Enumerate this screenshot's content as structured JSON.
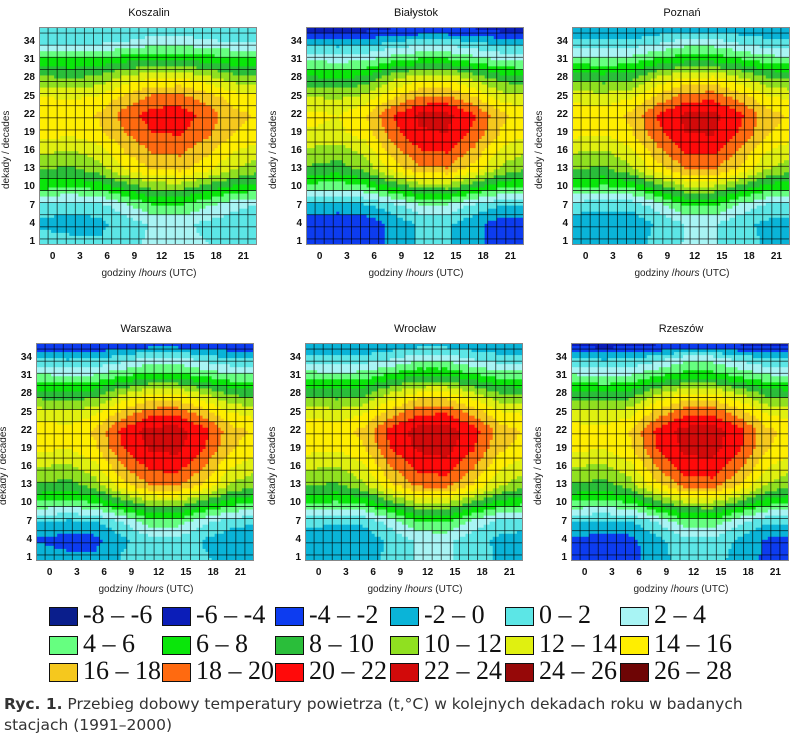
{
  "chart_data": {
    "type": "heatmap",
    "subtype": "filled-contour",
    "title": "Ryc. 1. Przebieg dobowy temperatury powietrza (t,°C) w kolejnych dekadach roku w badanych stacjach (1991–2000)",
    "xlabel_prefix": "godziny /",
    "xlabel_italic": "hours",
    "xlabel_suffix": " (UTC)",
    "ylabel": "dekady / decades",
    "x_ticks": [
      "0",
      "3",
      "6",
      "9",
      "12",
      "15",
      "18",
      "21"
    ],
    "y_ticks": [
      "34",
      "31",
      "28",
      "25",
      "22",
      "19",
      "16",
      "13",
      "10",
      "7",
      "4",
      "1"
    ],
    "xlim": [
      -1.5,
      22.5
    ],
    "ylim": [
      0.5,
      36.5
    ],
    "grid_hours": [
      -1,
      2,
      5,
      8,
      11,
      14,
      17,
      20,
      23
    ],
    "grid_decades": [
      1,
      4,
      7,
      10,
      13,
      16,
      19,
      22,
      25,
      28,
      31,
      34,
      36
    ],
    "legend": [
      {
        "label": "-8 – -6",
        "min": -8,
        "max": -6,
        "color": "#0a1e8c"
      },
      {
        "label": "-6 – -4",
        "min": -6,
        "max": -4,
        "color": "#0b1db8"
      },
      {
        "label": "-4 – -2",
        "min": -4,
        "max": -2,
        "color": "#0d3cf0"
      },
      {
        "label": "-2 – 0",
        "min": -2,
        "max": 0,
        "color": "#0ab4d8"
      },
      {
        "label": "0 – 2",
        "min": 0,
        "max": 2,
        "color": "#5ce6e6"
      },
      {
        "label": "2 – 4",
        "min": 2,
        "max": 4,
        "color": "#a8f4f4"
      },
      {
        "label": "4 – 6",
        "min": 4,
        "max": 6,
        "color": "#66ff80"
      },
      {
        "label": "6 – 8",
        "min": 6,
        "max": 8,
        "color": "#0ae60a"
      },
      {
        "label": "8 – 10",
        "min": 8,
        "max": 10,
        "color": "#2abe3a"
      },
      {
        "label": "10 – 12",
        "min": 10,
        "max": 12,
        "color": "#90e020"
      },
      {
        "label": "12 – 14",
        "min": 12,
        "max": 14,
        "color": "#e0f010"
      },
      {
        "label": "14 – 16",
        "min": 14,
        "max": 16,
        "color": "#ffee00"
      },
      {
        "label": "16 – 18",
        "min": 16,
        "max": 18,
        "color": "#f5c81e"
      },
      {
        "label": "18 – 20",
        "min": 18,
        "max": 20,
        "color": "#ff6a10"
      },
      {
        "label": "20 – 22",
        "min": 20,
        "max": 22,
        "color": "#ff0a0a"
      },
      {
        "label": "22 – 24",
        "min": 22,
        "max": 24,
        "color": "#d20a0a"
      },
      {
        "label": "24 – 26",
        "min": 24,
        "max": 26,
        "color": "#960808"
      },
      {
        "label": "26 – 28",
        "min": 26,
        "max": 28,
        "color": "#6e0505"
      }
    ],
    "stations": [
      {
        "name": "Koszalin",
        "temperature_grid": [
          [
            1.0,
            0.5,
            0.2,
            1.2,
            2.5,
            2.8,
            2.0,
            1.5,
            1.2
          ],
          [
            -0.5,
            -0.8,
            -0.6,
            0.8,
            2.2,
            2.4,
            1.5,
            0.8,
            0.5
          ],
          [
            1.0,
            0.6,
            1.0,
            3.5,
            5.8,
            6.0,
            4.2,
            2.5,
            1.8
          ],
          [
            6.5,
            6.2,
            6.6,
            8.5,
            10.5,
            10.6,
            9.0,
            7.5,
            7.0
          ],
          [
            10.0,
            9.6,
            11.0,
            14.0,
            16.2,
            16.5,
            14.5,
            12.0,
            10.5
          ],
          [
            12.5,
            11.8,
            13.0,
            16.2,
            18.2,
            18.5,
            16.5,
            14.0,
            13.0
          ],
          [
            14.8,
            14.5,
            15.4,
            18.0,
            20.0,
            20.2,
            18.5,
            16.0,
            15.2
          ],
          [
            15.6,
            15.2,
            16.2,
            19.0,
            21.0,
            21.2,
            19.2,
            16.5,
            15.8
          ],
          [
            14.0,
            13.6,
            14.2,
            16.5,
            18.4,
            18.6,
            17.0,
            15.0,
            14.3
          ],
          [
            10.5,
            10.0,
            10.6,
            12.8,
            14.0,
            14.2,
            12.8,
            11.0,
            10.6
          ],
          [
            6.5,
            6.5,
            6.6,
            7.5,
            8.0,
            8.0,
            7.4,
            6.8,
            6.6
          ],
          [
            1.5,
            1.5,
            1.5,
            2.0,
            3.0,
            3.0,
            2.5,
            1.8,
            1.6
          ],
          [
            0.2,
            0.0,
            0.0,
            0.5,
            1.0,
            1.0,
            0.6,
            0.3,
            0.3
          ]
        ]
      },
      {
        "name": "Białystok",
        "temperature_grid": [
          [
            -3.5,
            -3.8,
            -3.5,
            -1.5,
            0.2,
            0.3,
            -1.5,
            -3.0,
            -3.3
          ],
          [
            -3.2,
            -3.6,
            -3.4,
            -1.5,
            0.3,
            0.4,
            -1.4,
            -3.0,
            -3.2
          ],
          [
            -0.5,
            -0.9,
            -0.5,
            1.2,
            3.5,
            3.5,
            1.6,
            0.0,
            -0.4
          ],
          [
            5.0,
            4.5,
            5.5,
            8.0,
            10.5,
            10.6,
            8.2,
            6.2,
            5.5
          ],
          [
            9.5,
            9.0,
            10.5,
            14.5,
            17.5,
            17.8,
            15.0,
            11.5,
            10.0
          ],
          [
            11.5,
            11.0,
            12.5,
            17.0,
            19.8,
            20.2,
            17.5,
            13.5,
            12.0
          ],
          [
            13.8,
            13.5,
            15.0,
            19.0,
            21.8,
            22.0,
            19.5,
            15.8,
            14.2
          ],
          [
            14.5,
            14.0,
            15.8,
            20.0,
            22.4,
            22.6,
            20.2,
            16.5,
            15.0
          ],
          [
            12.0,
            11.6,
            12.5,
            15.5,
            18.2,
            18.4,
            16.0,
            13.0,
            12.3
          ],
          [
            8.5,
            8.0,
            8.6,
            11.5,
            13.5,
            13.6,
            11.5,
            9.2,
            8.6
          ],
          [
            3.8,
            3.5,
            3.8,
            5.5,
            6.5,
            6.5,
            5.2,
            4.0,
            3.8
          ],
          [
            -1.0,
            -1.2,
            -1.0,
            0.0,
            1.0,
            1.0,
            0.0,
            -0.8,
            -0.9
          ],
          [
            -4.5,
            -4.7,
            -4.5,
            -4.0,
            -3.8,
            -3.8,
            -4.0,
            -4.5,
            -4.5
          ]
        ]
      },
      {
        "name": "Poznań",
        "temperature_grid": [
          [
            -0.6,
            -0.8,
            -0.7,
            0.5,
            2.2,
            2.3,
            0.8,
            -0.3,
            -0.5
          ],
          [
            -1.0,
            -1.2,
            -1.3,
            0.3,
            2.0,
            2.2,
            0.5,
            -0.5,
            -0.8
          ],
          [
            0.8,
            0.4,
            0.5,
            3.0,
            6.0,
            6.2,
            3.5,
            1.5,
            1.0
          ],
          [
            6.0,
            5.6,
            6.0,
            9.0,
            11.5,
            11.6,
            9.2,
            7.0,
            6.3
          ],
          [
            10.0,
            9.6,
            11.5,
            15.0,
            18.0,
            18.3,
            15.5,
            12.0,
            10.5
          ],
          [
            12.2,
            11.8,
            13.5,
            17.5,
            20.2,
            20.5,
            17.8,
            14.0,
            12.6
          ],
          [
            14.6,
            14.2,
            15.8,
            19.5,
            22.0,
            22.2,
            19.8,
            16.2,
            15.0
          ],
          [
            15.3,
            15.0,
            16.5,
            20.2,
            22.5,
            22.7,
            20.5,
            16.8,
            15.6
          ],
          [
            13.2,
            12.8,
            13.6,
            16.5,
            19.0,
            19.2,
            17.0,
            14.2,
            13.4
          ],
          [
            9.5,
            9.0,
            9.6,
            12.5,
            14.5,
            14.6,
            12.5,
            10.2,
            9.6
          ],
          [
            5.0,
            4.8,
            5.0,
            6.8,
            7.5,
            7.5,
            6.5,
            5.2,
            5.0
          ],
          [
            0.5,
            0.3,
            0.5,
            1.5,
            3.0,
            3.0,
            1.5,
            0.6,
            0.5
          ],
          [
            -1.5,
            -1.7,
            -1.6,
            -1.0,
            -0.5,
            -0.5,
            -1.0,
            -1.4,
            -1.5
          ]
        ]
      },
      {
        "name": "Warszawa",
        "temperature_grid": [
          [
            -1.0,
            -1.5,
            -1.6,
            0.2,
            1.5,
            1.6,
            0.2,
            -0.6,
            -0.8
          ],
          [
            -2.2,
            -2.8,
            -2.6,
            -0.5,
            1.2,
            1.4,
            -0.2,
            -1.2,
            -1.6
          ],
          [
            0.0,
            -0.5,
            -0.2,
            2.0,
            5.0,
            5.2,
            2.4,
            0.8,
            0.2
          ],
          [
            5.5,
            5.0,
            5.8,
            8.5,
            11.0,
            11.2,
            8.8,
            6.6,
            5.8
          ],
          [
            9.8,
            9.2,
            11.0,
            15.0,
            18.0,
            18.4,
            15.5,
            11.8,
            10.2
          ],
          [
            12.0,
            11.5,
            13.2,
            17.8,
            20.4,
            20.8,
            18.0,
            14.0,
            12.4
          ],
          [
            14.4,
            14.0,
            15.6,
            19.8,
            22.2,
            22.5,
            20.0,
            16.2,
            14.8
          ],
          [
            15.2,
            14.8,
            16.4,
            20.6,
            22.8,
            23.0,
            20.8,
            16.8,
            15.5
          ],
          [
            13.0,
            12.5,
            13.4,
            16.6,
            19.2,
            19.4,
            17.0,
            14.0,
            13.2
          ],
          [
            9.0,
            8.6,
            9.2,
            12.2,
            14.2,
            14.4,
            12.2,
            9.8,
            9.2
          ],
          [
            4.5,
            4.2,
            4.4,
            6.0,
            7.0,
            7.0,
            5.8,
            4.6,
            4.4
          ],
          [
            0.0,
            -0.4,
            -0.2,
            0.8,
            2.4,
            2.4,
            1.0,
            0.0,
            -0.1
          ],
          [
            -3.6,
            -3.8,
            -3.6,
            -3.0,
            -2.6,
            -2.6,
            -3.0,
            -3.4,
            -3.5
          ]
        ]
      },
      {
        "name": "Wrocław",
        "temperature_grid": [
          [
            -0.5,
            -0.8,
            -0.8,
            0.5,
            2.2,
            2.4,
            0.9,
            -0.3,
            -0.5
          ],
          [
            -1.0,
            -1.3,
            -1.2,
            0.4,
            2.4,
            2.6,
            0.8,
            -0.5,
            -0.8
          ],
          [
            0.6,
            0.2,
            0.4,
            3.0,
            6.0,
            6.2,
            3.5,
            1.2,
            0.8
          ],
          [
            6.0,
            5.6,
            6.2,
            9.2,
            11.8,
            12.0,
            9.4,
            7.0,
            6.3
          ],
          [
            10.2,
            9.6,
            11.6,
            15.5,
            18.5,
            18.8,
            15.8,
            12.2,
            10.6
          ],
          [
            12.3,
            11.8,
            13.6,
            18.0,
            20.6,
            21.0,
            18.2,
            14.2,
            12.6
          ],
          [
            14.6,
            14.2,
            15.8,
            20.0,
            22.4,
            22.8,
            20.2,
            16.4,
            15.0
          ],
          [
            15.4,
            15.0,
            16.6,
            20.8,
            23.0,
            23.3,
            21.0,
            17.0,
            15.7
          ],
          [
            13.4,
            12.8,
            13.8,
            17.0,
            19.6,
            19.8,
            17.4,
            14.4,
            13.6
          ],
          [
            9.6,
            9.0,
            9.6,
            12.6,
            14.8,
            15.0,
            12.6,
            10.2,
            9.6
          ],
          [
            5.2,
            5.0,
            5.2,
            7.0,
            8.0,
            8.0,
            6.8,
            5.4,
            5.2
          ],
          [
            0.6,
            0.4,
            0.6,
            1.6,
            3.2,
            3.2,
            1.6,
            0.7,
            0.6
          ],
          [
            -1.5,
            -1.7,
            -1.6,
            -1.0,
            -0.4,
            -0.4,
            -1.0,
            -1.4,
            -1.5
          ]
        ]
      },
      {
        "name": "Rzeszów",
        "temperature_grid": [
          [
            -2.6,
            -3.0,
            -2.8,
            -0.8,
            0.8,
            1.0,
            -0.8,
            -2.4,
            -2.6
          ],
          [
            -2.4,
            -2.8,
            -2.6,
            -0.6,
            1.4,
            1.6,
            -0.4,
            -2.2,
            -2.4
          ],
          [
            0.0,
            -0.4,
            -0.2,
            2.2,
            5.2,
            5.4,
            2.6,
            0.4,
            0.2
          ],
          [
            5.5,
            5.0,
            5.8,
            9.0,
            11.5,
            11.6,
            9.2,
            6.6,
            5.8
          ],
          [
            9.8,
            9.2,
            11.0,
            15.4,
            18.6,
            19.0,
            16.0,
            12.0,
            10.2
          ],
          [
            12.0,
            11.4,
            13.2,
            18.2,
            21.0,
            21.4,
            18.6,
            14.2,
            12.4
          ],
          [
            14.4,
            14.0,
            15.6,
            20.0,
            22.4,
            22.8,
            20.4,
            16.2,
            14.8
          ],
          [
            15.0,
            14.6,
            16.2,
            20.6,
            22.8,
            23.2,
            20.8,
            16.6,
            15.3
          ],
          [
            12.8,
            12.4,
            13.2,
            16.8,
            19.4,
            19.6,
            17.0,
            13.8,
            13.0
          ],
          [
            9.0,
            8.6,
            9.0,
            12.2,
            14.4,
            14.6,
            12.2,
            9.6,
            9.0
          ],
          [
            4.4,
            4.0,
            4.2,
            6.0,
            7.2,
            7.2,
            5.8,
            4.4,
            4.2
          ],
          [
            0.0,
            -0.4,
            -0.2,
            1.0,
            3.0,
            3.0,
            1.2,
            0.0,
            -0.1
          ],
          [
            -4.4,
            -4.6,
            -4.4,
            -4.0,
            -3.6,
            -3.6,
            -4.0,
            -4.4,
            -4.4
          ]
        ]
      }
    ]
  },
  "caption": {
    "label": "Ryc. 1.",
    "line1": " Przebieg dobowy temperatury powietrza (t,°C) w kolejnych dekadach roku w badanych",
    "line2": "stacjach (1991–2000)"
  }
}
